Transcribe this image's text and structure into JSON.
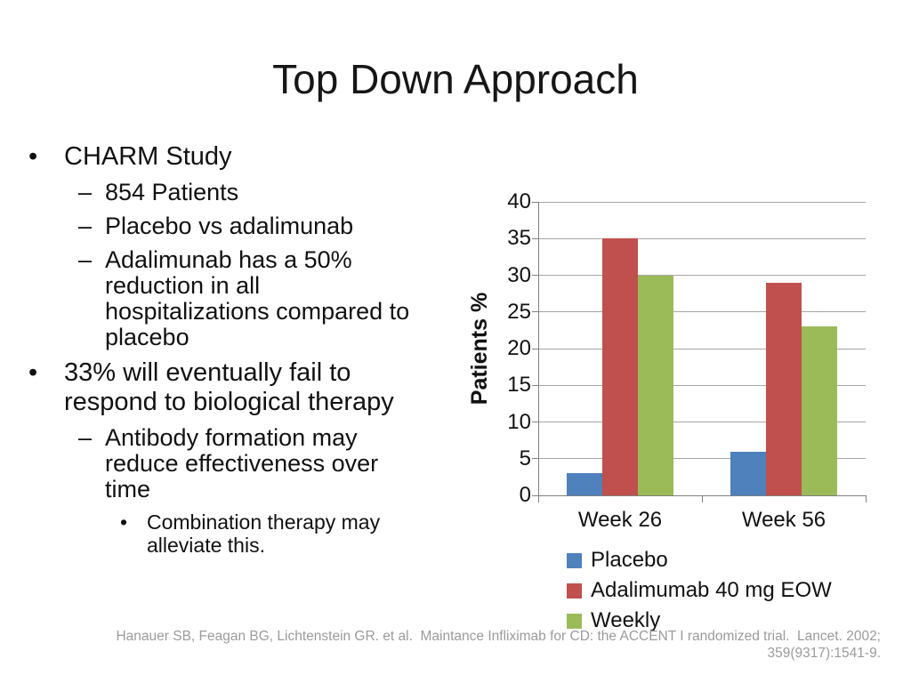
{
  "slide": {
    "title": "Top Down Approach",
    "background_color": "#ffffff"
  },
  "bullet_markers": {
    "1": "•",
    "2": "–",
    "3": "•"
  },
  "bullets": [
    {
      "level": 1,
      "text": "CHARM Study"
    },
    {
      "level": 2,
      "text": "854 Patients"
    },
    {
      "level": 2,
      "text": "Placebo vs adalimunab"
    },
    {
      "level": 2,
      "text": "Adalimunab has a 50%\nreduction in all\nhospitalizations compared to\nplacebo"
    },
    {
      "level": 1,
      "text": "33% will eventually fail to\nrespond to biological therapy"
    },
    {
      "level": 2,
      "text": "Antibody formation may\nreduce effectiveness over\ntime"
    },
    {
      "level": 3,
      "text": "Combination therapy may\nalleviate this."
    }
  ],
  "chart_data": {
    "type": "bar",
    "categories": [
      "Week 26",
      "Week 56"
    ],
    "series": [
      {
        "name": "Placebo",
        "color": "#4F81BD",
        "values": [
          3,
          6
        ]
      },
      {
        "name": "Adalimumab 40 mg EOW",
        "color": "#C0504D",
        "values": [
          35,
          29
        ]
      },
      {
        "name": "Weekly",
        "color": "#9BBB59",
        "values": [
          30,
          23
        ]
      }
    ],
    "title": "",
    "xlabel": "",
    "ylabel": "Patients %",
    "ylim": [
      0,
      40
    ],
    "ytick_step": 5,
    "grid": true,
    "gridline_color": "#a6a6a6",
    "axis_color": "#808080",
    "legend_position": "bottom-left"
  },
  "citation": {
    "text": "Hanauer SB, Feagan BG, Lichtenstein GR. et al.  Maintance Infliximab for CD: the ACCENT I randomized trial.  Lancet. 2002;\n359(9317):1541-9.",
    "color": "#9b9b9b"
  }
}
